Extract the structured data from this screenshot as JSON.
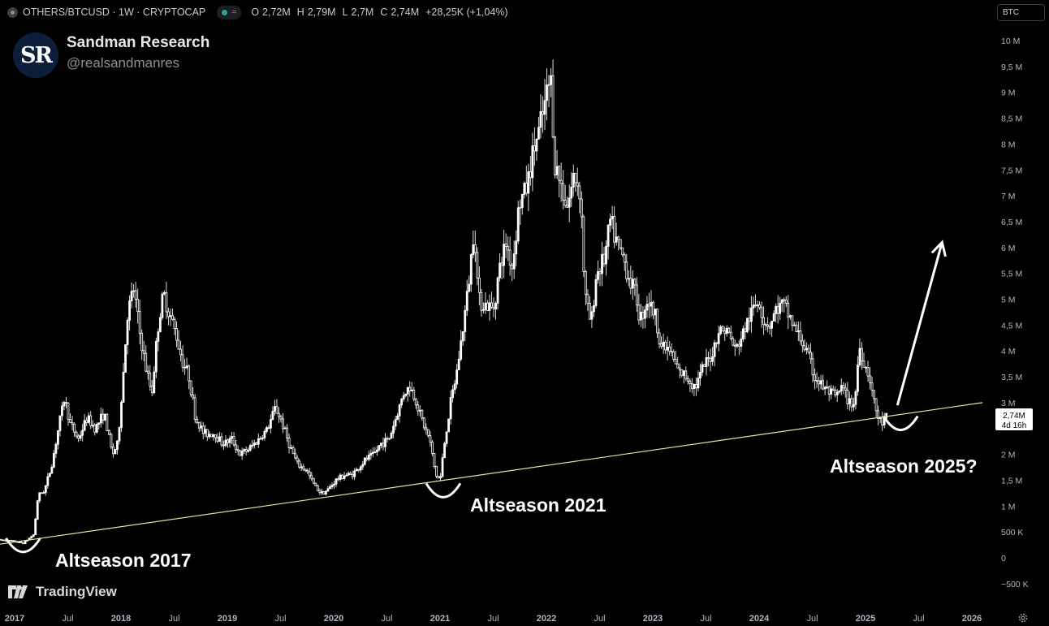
{
  "header": {
    "symbol": "OTHERS/BTCUSD · 1W · CRYPTOCAP",
    "ohlc": [
      {
        "key": "O",
        "value": "2,72M"
      },
      {
        "key": "H",
        "value": "2,79M"
      },
      {
        "key": "L",
        "value": "2,7M"
      },
      {
        "key": "C",
        "value": "2,74M"
      }
    ],
    "change": "+28,25K (+1,04%)",
    "currency": "BTC"
  },
  "brand": {
    "logo_text": "SR",
    "name": "Sandman Research",
    "handle": "@realsandmanres"
  },
  "tradingview_label": "TradingView",
  "colors": {
    "background": "#000000",
    "candle_fill": "#ffffff",
    "trendline": "#e6e2a8",
    "annotation": "#ffffff",
    "axis_text": "#b2b5be"
  },
  "icons": [
    "settings-gear-icon",
    "tradingview-logo-icon"
  ],
  "chart_data": {
    "type": "candlestick",
    "title": "OTHERS/BTCUSD · 1W · CRYPTOCAP",
    "y_unit": "BTC",
    "ylim": [
      -600000,
      10200000
    ],
    "y_ticks": [
      {
        "value": 10000000,
        "label": "10 M"
      },
      {
        "value": 9500000,
        "label": "9,5 M"
      },
      {
        "value": 9000000,
        "label": "9 M"
      },
      {
        "value": 8500000,
        "label": "8,5 M"
      },
      {
        "value": 8000000,
        "label": "8 M"
      },
      {
        "value": 7500000,
        "label": "7,5 M"
      },
      {
        "value": 7000000,
        "label": "7 M"
      },
      {
        "value": 6500000,
        "label": "6,5 M"
      },
      {
        "value": 6000000,
        "label": "6 M"
      },
      {
        "value": 5500000,
        "label": "5,5 M"
      },
      {
        "value": 5000000,
        "label": "5 M"
      },
      {
        "value": 4500000,
        "label": "4,5 M"
      },
      {
        "value": 4000000,
        "label": "4 M"
      },
      {
        "value": 3500000,
        "label": "3,5 M"
      },
      {
        "value": 3000000,
        "label": "3 M"
      },
      {
        "value": 2000000,
        "label": "2 M"
      },
      {
        "value": 1500000,
        "label": "1,5 M"
      },
      {
        "value": 1000000,
        "label": "1 M"
      },
      {
        "value": 500000,
        "label": "500 K"
      },
      {
        "value": 0,
        "label": "0"
      },
      {
        "value": -500000,
        "label": "−500 K"
      }
    ],
    "x_ticks": [
      {
        "t": 2017.0,
        "label": "2017",
        "bold": true
      },
      {
        "t": 2017.5,
        "label": "Jul",
        "bold": false
      },
      {
        "t": 2018.0,
        "label": "2018",
        "bold": true
      },
      {
        "t": 2018.5,
        "label": "Jul",
        "bold": false
      },
      {
        "t": 2019.0,
        "label": "2019",
        "bold": true
      },
      {
        "t": 2019.5,
        "label": "Jul",
        "bold": false
      },
      {
        "t": 2020.0,
        "label": "2020",
        "bold": true
      },
      {
        "t": 2020.5,
        "label": "Jul",
        "bold": false
      },
      {
        "t": 2021.0,
        "label": "2021",
        "bold": true
      },
      {
        "t": 2021.5,
        "label": "Jul",
        "bold": false
      },
      {
        "t": 2022.0,
        "label": "2022",
        "bold": true
      },
      {
        "t": 2022.5,
        "label": "Jul",
        "bold": false
      },
      {
        "t": 2023.0,
        "label": "2023",
        "bold": true
      },
      {
        "t": 2023.5,
        "label": "Jul",
        "bold": false
      },
      {
        "t": 2024.0,
        "label": "2024",
        "bold": true
      },
      {
        "t": 2024.5,
        "label": "Jul",
        "bold": false
      },
      {
        "t": 2025.0,
        "label": "2025",
        "bold": true
      },
      {
        "t": 2025.5,
        "label": "Jul",
        "bold": false
      },
      {
        "t": 2026.0,
        "label": "2026",
        "bold": true
      }
    ],
    "path": [
      [
        2016.85,
        350000
      ],
      [
        2017.0,
        320000
      ],
      [
        2017.08,
        280000
      ],
      [
        2017.18,
        450000
      ],
      [
        2017.22,
        1200000
      ],
      [
        2017.28,
        1300000
      ],
      [
        2017.35,
        1800000
      ],
      [
        2017.42,
        2600000
      ],
      [
        2017.47,
        3100000
      ],
      [
        2017.52,
        2600000
      ],
      [
        2017.6,
        2300000
      ],
      [
        2017.68,
        2700000
      ],
      [
        2017.76,
        2500000
      ],
      [
        2017.84,
        2800000
      ],
      [
        2017.92,
        2000000
      ],
      [
        2017.97,
        2200000
      ],
      [
        2018.02,
        3500000
      ],
      [
        2018.06,
        4700000
      ],
      [
        2018.12,
        5200000
      ],
      [
        2018.18,
        4300000
      ],
      [
        2018.24,
        3600000
      ],
      [
        2018.29,
        3200000
      ],
      [
        2018.35,
        4500000
      ],
      [
        2018.4,
        5100000
      ],
      [
        2018.46,
        4700000
      ],
      [
        2018.52,
        4300000
      ],
      [
        2018.58,
        3800000
      ],
      [
        2018.64,
        3500000
      ],
      [
        2018.7,
        2700000
      ],
      [
        2018.78,
        2400000
      ],
      [
        2018.88,
        2400000
      ],
      [
        2018.96,
        2200000
      ],
      [
        2019.04,
        2300000
      ],
      [
        2019.12,
        2000000
      ],
      [
        2019.2,
        2100000
      ],
      [
        2019.3,
        2300000
      ],
      [
        2019.38,
        2500000
      ],
      [
        2019.45,
        2900000
      ],
      [
        2019.5,
        2700000
      ],
      [
        2019.58,
        2200000
      ],
      [
        2019.66,
        1800000
      ],
      [
        2019.74,
        1700000
      ],
      [
        2019.82,
        1400000
      ],
      [
        2019.88,
        1250000
      ],
      [
        2019.94,
        1300000
      ],
      [
        2020.02,
        1500000
      ],
      [
        2020.1,
        1600000
      ],
      [
        2020.16,
        1600000
      ],
      [
        2020.22,
        1700000
      ],
      [
        2020.3,
        1900000
      ],
      [
        2020.38,
        2000000
      ],
      [
        2020.44,
        2200000
      ],
      [
        2020.52,
        2300000
      ],
      [
        2020.6,
        2800000
      ],
      [
        2020.66,
        3200000
      ],
      [
        2020.72,
        3300000
      ],
      [
        2020.78,
        3000000
      ],
      [
        2020.84,
        2600000
      ],
      [
        2020.9,
        2300000
      ],
      [
        2020.96,
        1600000
      ],
      [
        2021.0,
        1500000
      ],
      [
        2021.04,
        2200000
      ],
      [
        2021.1,
        3000000
      ],
      [
        2021.15,
        3500000
      ],
      [
        2021.22,
        4500000
      ],
      [
        2021.28,
        5500000
      ],
      [
        2021.32,
        6500000
      ],
      [
        2021.36,
        5000000
      ],
      [
        2021.42,
        4900000
      ],
      [
        2021.5,
        4800000
      ],
      [
        2021.56,
        5600000
      ],
      [
        2021.62,
        6100000
      ],
      [
        2021.68,
        5600000
      ],
      [
        2021.74,
        6800000
      ],
      [
        2021.82,
        7200000
      ],
      [
        2021.88,
        7900000
      ],
      [
        2021.94,
        8300000
      ],
      [
        2022.0,
        8900000
      ],
      [
        2022.04,
        9300000
      ],
      [
        2022.08,
        7600000
      ],
      [
        2022.14,
        7200000
      ],
      [
        2022.2,
        6800000
      ],
      [
        2022.26,
        7400000
      ],
      [
        2022.32,
        7100000
      ],
      [
        2022.36,
        5100000
      ],
      [
        2022.42,
        4500000
      ],
      [
        2022.47,
        5500000
      ],
      [
        2022.55,
        5800000
      ],
      [
        2022.6,
        6500000
      ],
      [
        2022.66,
        6100000
      ],
      [
        2022.72,
        5800000
      ],
      [
        2022.78,
        5400000
      ],
      [
        2022.84,
        5100000
      ],
      [
        2022.88,
        4600000
      ],
      [
        2022.95,
        5000000
      ],
      [
        2023.02,
        4700000
      ],
      [
        2023.08,
        4100000
      ],
      [
        2023.16,
        4000000
      ],
      [
        2023.24,
        3600000
      ],
      [
        2023.32,
        3500000
      ],
      [
        2023.4,
        3300000
      ],
      [
        2023.48,
        3700000
      ],
      [
        2023.55,
        3900000
      ],
      [
        2023.62,
        4400000
      ],
      [
        2023.7,
        4400000
      ],
      [
        2023.78,
        4000000
      ],
      [
        2023.86,
        4400000
      ],
      [
        2023.94,
        4800000
      ],
      [
        2024.0,
        5000000
      ],
      [
        2024.04,
        4600000
      ],
      [
        2024.1,
        4500000
      ],
      [
        2024.16,
        4800000
      ],
      [
        2024.22,
        4900000
      ],
      [
        2024.28,
        4700000
      ],
      [
        2024.34,
        4400000
      ],
      [
        2024.4,
        4200000
      ],
      [
        2024.46,
        3900000
      ],
      [
        2024.52,
        3500000
      ],
      [
        2024.6,
        3300000
      ],
      [
        2024.66,
        3200000
      ],
      [
        2024.72,
        3100000
      ],
      [
        2024.78,
        3300000
      ],
      [
        2024.84,
        3000000
      ],
      [
        2024.9,
        3000000
      ],
      [
        2024.94,
        4100000
      ],
      [
        2024.98,
        3800000
      ],
      [
        2025.04,
        3500000
      ],
      [
        2025.08,
        3000000
      ],
      [
        2025.12,
        2700000
      ],
      [
        2025.16,
        2600000
      ],
      [
        2025.2,
        2740000
      ]
    ],
    "trendline": [
      [
        2016.85,
        260000
      ],
      [
        2026.1,
        3000000
      ]
    ],
    "last_value_label": "2,74M",
    "countdown_label": "4d 16h",
    "annotations": [
      {
        "text": "Altseason 2017",
        "t": 2017.08,
        "value": 160000
      },
      {
        "text": "Altseason 2021",
        "t": 2021.0,
        "value": 1420000
      },
      {
        "text": "Altseason 2025?",
        "t": 2025.28,
        "value": 2570000
      }
    ],
    "arrow": {
      "from": [
        2025.3,
        2950000
      ],
      "to": [
        2025.72,
        6100000
      ]
    },
    "grid": false
  }
}
